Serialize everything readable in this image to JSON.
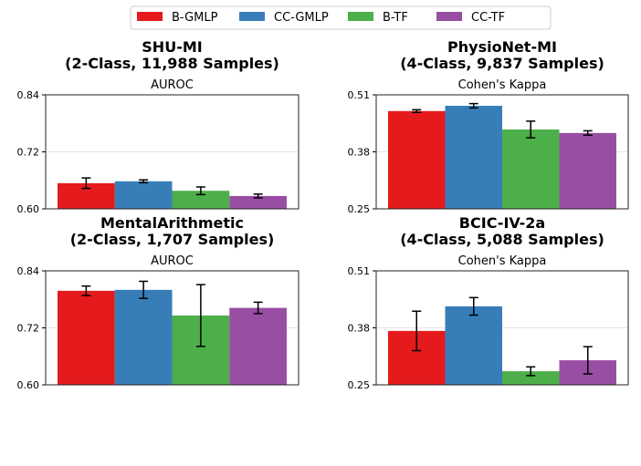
{
  "legend": [
    {
      "name": "B-GMLP",
      "color": "#e41a1c"
    },
    {
      "name": "CC-GMLP",
      "color": "#377eb8"
    },
    {
      "name": "B-TF",
      "color": "#4daf4a"
    },
    {
      "name": "CC-TF",
      "color": "#984ea3"
    }
  ],
  "chart_data": [
    {
      "type": "bar",
      "title": "SHU-MI",
      "subtitle": "(2-Class, 11,988 Samples)",
      "ylabel": "AUROC",
      "ylim": [
        0.6,
        0.84
      ],
      "yticks": [
        "0.60",
        "0.72",
        "0.84"
      ],
      "grid": "y",
      "series": [
        {
          "name": "B-GMLP",
          "value": 0.654,
          "error": 0.011
        },
        {
          "name": "CC-GMLP",
          "value": 0.658,
          "error": 0.003
        },
        {
          "name": "B-TF",
          "value": 0.638,
          "error": 0.008
        },
        {
          "name": "CC-TF",
          "value": 0.627,
          "error": 0.004
        }
      ]
    },
    {
      "type": "bar",
      "title": "PhysioNet-MI",
      "subtitle": "(4-Class, 9,837 Samples)",
      "ylabel": "Cohen's Kappa",
      "ylim": [
        0.25,
        0.51
      ],
      "yticks": [
        "0.25",
        "0.38",
        "0.51"
      ],
      "grid": "y",
      "series": [
        {
          "name": "B-GMLP",
          "value": 0.473,
          "error": 0.003
        },
        {
          "name": "CC-GMLP",
          "value": 0.485,
          "error": 0.005
        },
        {
          "name": "B-TF",
          "value": 0.431,
          "error": 0.019
        },
        {
          "name": "CC-TF",
          "value": 0.423,
          "error": 0.005
        }
      ]
    },
    {
      "type": "bar",
      "title": "MentalArithmetic",
      "subtitle": "(2-Class, 1,707 Samples)",
      "ylabel": "AUROC",
      "ylim": [
        0.6,
        0.84
      ],
      "yticks": [
        "0.60",
        "0.72",
        "0.84"
      ],
      "grid": "y",
      "series": [
        {
          "name": "B-GMLP",
          "value": 0.798,
          "error": 0.01
        },
        {
          "name": "CC-GMLP",
          "value": 0.8,
          "error": 0.018
        },
        {
          "name": "B-TF",
          "value": 0.746,
          "error": 0.065
        },
        {
          "name": "CC-TF",
          "value": 0.762,
          "error": 0.012
        }
      ]
    },
    {
      "type": "bar",
      "title": "BCIC-IV-2a",
      "subtitle": "(4-Class, 5,088 Samples)",
      "ylabel": "Cohen's Kappa",
      "ylim": [
        0.25,
        0.51
      ],
      "yticks": [
        "0.25",
        "0.38",
        "0.51"
      ],
      "grid": "y",
      "series": [
        {
          "name": "B-GMLP",
          "value": 0.373,
          "error": 0.045
        },
        {
          "name": "CC-GMLP",
          "value": 0.429,
          "error": 0.02
        },
        {
          "name": "B-TF",
          "value": 0.281,
          "error": 0.01
        },
        {
          "name": "CC-TF",
          "value": 0.306,
          "error": 0.031
        }
      ]
    }
  ]
}
